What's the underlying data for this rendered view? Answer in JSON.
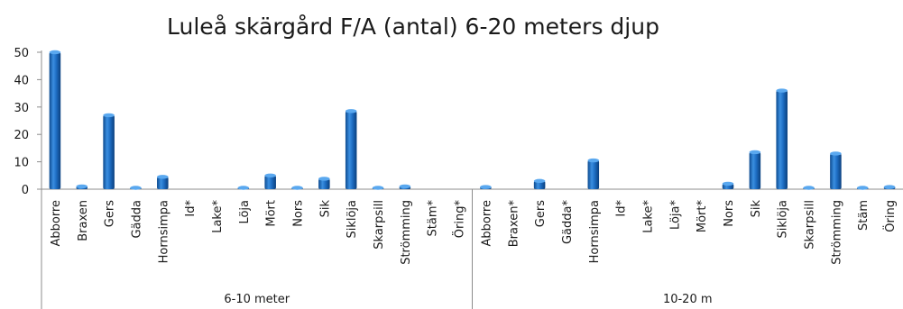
{
  "chart_data": {
    "type": "bar",
    "title": "Luleå skärgård F/A (antal) 6-20 meters djup",
    "ylim": [
      0,
      50
    ],
    "yticks": [
      0,
      10,
      20,
      30,
      40,
      50
    ],
    "grid": false,
    "legend": "none",
    "bar_color": "#1f6fc5",
    "groups": [
      {
        "label": "6-10 meter",
        "categories": [
          "Abborre",
          "Braxen",
          "Gers",
          "Gädda",
          "Hornsimpa",
          "Id*",
          "Lake*",
          "Löja",
          "Mört",
          "Nors",
          "Sik",
          "Siklöja",
          "Skarpsill",
          "Strömming",
          "Stäm*",
          "Öring*"
        ],
        "values": [
          50,
          1,
          27,
          0.3,
          4.5,
          0,
          0,
          0.3,
          5,
          0.3,
          3.8,
          28.5,
          0.3,
          1,
          0,
          0
        ]
      },
      {
        "label": "10-20 m",
        "categories": [
          "Abborre",
          "Braxen*",
          "Gers",
          "Gädda*",
          "Hornsimpa",
          "Id*",
          "Lake*",
          "Löja*",
          "Mört*",
          "Nors",
          "Sik",
          "Siklöja",
          "Skarpsill",
          "Strömming",
          "Stäm",
          "Öring"
        ],
        "values": [
          0.8,
          0,
          3,
          0,
          10.5,
          0,
          0,
          0,
          0,
          2,
          13.5,
          36,
          0.3,
          13,
          0.3,
          0.8
        ]
      }
    ]
  }
}
